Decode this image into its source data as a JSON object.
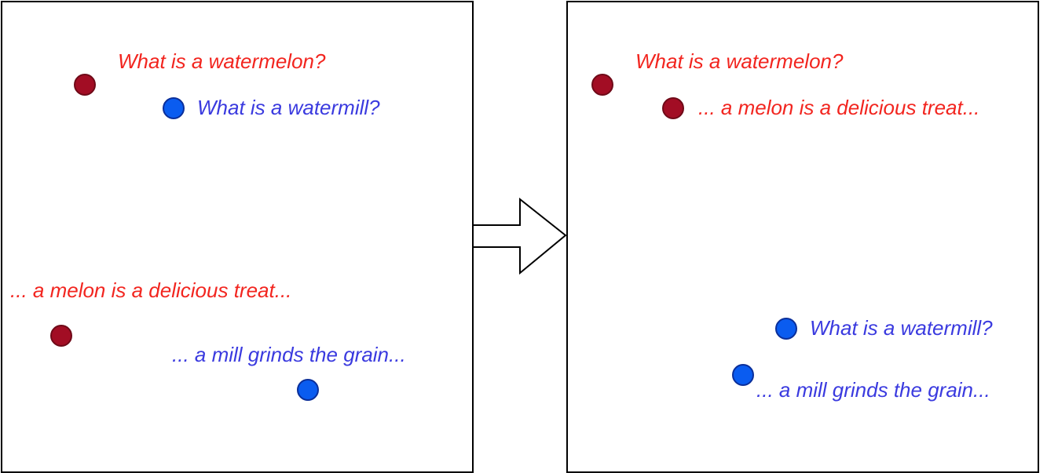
{
  "colors": {
    "red_dot": "#a20d24",
    "blue_dot": "#0a5cf0",
    "red_text": "#f2251f",
    "blue_text": "#3a3adf"
  },
  "before": {
    "query_melon": "What is a watermelon?",
    "query_mill": "What is a watermill?",
    "doc_melon": "... a melon is a delicious treat...",
    "doc_mill": "... a mill grinds the grain..."
  },
  "after": {
    "query_melon": "What is a watermelon?",
    "doc_melon": "... a melon is a delicious treat...",
    "query_mill": "What is a watermill?",
    "doc_mill": "... a mill grinds the grain..."
  },
  "arrow_icon": "right-arrow-icon"
}
